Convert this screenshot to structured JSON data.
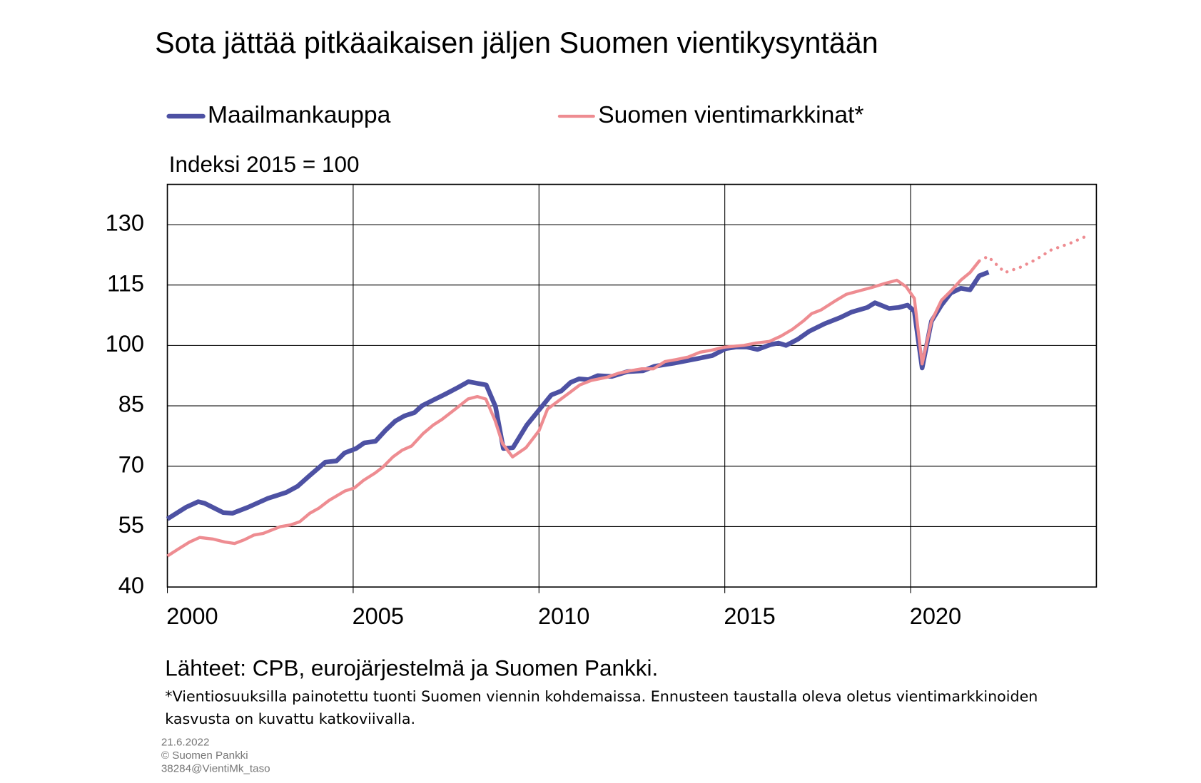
{
  "chart_data": {
    "type": "line",
    "title": "Sota jättää pitkäaikaisen jäljen Suomen vientikysyntään",
    "y_label": "Indeksi 2015 = 100",
    "xlim": [
      2000,
      2025
    ],
    "xticks": [
      2000,
      2005,
      2010,
      2015,
      2020
    ],
    "ylim": [
      40,
      140
    ],
    "yticks": [
      40,
      55,
      70,
      85,
      100,
      115,
      130
    ],
    "grid": true,
    "series": [
      {
        "name": "Maailmankauppa",
        "color": "#4d51a3",
        "linewidth": 6,
        "x": [
          2000.0,
          2000.5,
          2000.83,
          2001.0,
          2001.5,
          2001.75,
          2002.17,
          2002.7,
          2003.2,
          2003.5,
          2003.83,
          2004.25,
          2004.55,
          2004.77,
          2005.08,
          2005.3,
          2005.6,
          2005.88,
          2006.13,
          2006.38,
          2006.65,
          2006.85,
          2007.17,
          2007.48,
          2007.83,
          2008.1,
          2008.58,
          2008.83,
          2009.04,
          2009.3,
          2009.67,
          2010.02,
          2010.33,
          2010.6,
          2010.85,
          2011.08,
          2011.33,
          2011.58,
          2011.96,
          2012.38,
          2012.8,
          2013.1,
          2013.63,
          2014.25,
          2014.67,
          2015.02,
          2015.3,
          2015.6,
          2015.88,
          2016.23,
          2016.44,
          2016.65,
          2016.96,
          2017.27,
          2017.69,
          2018.1,
          2018.42,
          2018.83,
          2019.04,
          2019.42,
          2019.67,
          2019.92,
          2020.1,
          2020.31,
          2020.56,
          2020.83,
          2021.08,
          2021.35,
          2021.6,
          2021.85,
          2022.1
        ],
        "values": [
          56.9,
          59.8,
          61.2,
          60.8,
          58.5,
          58.3,
          59.8,
          62,
          63.5,
          65,
          67.7,
          71,
          71.3,
          73.3,
          74.4,
          75.8,
          76.2,
          79,
          81.2,
          82.5,
          83.3,
          85,
          86.5,
          87.9,
          89.6,
          91,
          90.2,
          84.8,
          74.4,
          74.6,
          80.2,
          84.2,
          87.7,
          88.7,
          90.8,
          91.7,
          91.5,
          92.5,
          92.3,
          93.5,
          93.7,
          94.8,
          95.6,
          96.7,
          97.5,
          99.2,
          99.6,
          99.6,
          99,
          100.2,
          100.6,
          100,
          101.5,
          103.5,
          105.4,
          106.9,
          108.3,
          109.4,
          110.6,
          109.2,
          109.4,
          110,
          108.5,
          94.4,
          106,
          110,
          113,
          114.2,
          113.8,
          117.3,
          118.2
        ]
      },
      {
        "name": "Suomen vientimarkkinat*",
        "color": "#ee8c91",
        "linewidth": 4,
        "x": [
          2000.0,
          2000.29,
          2000.6,
          2000.87,
          2001.23,
          2001.54,
          2001.81,
          2002.06,
          2002.33,
          2002.58,
          2003.04,
          2003.31,
          2003.56,
          2003.83,
          2004.08,
          2004.35,
          2004.77,
          2005.03,
          2005.28,
          2005.59,
          2005.8,
          2006.07,
          2006.32,
          2006.57,
          2006.88,
          2007.15,
          2007.4,
          2007.78,
          2008.09,
          2008.34,
          2008.57,
          2008.82,
          2009.02,
          2009.29,
          2009.65,
          2010.0,
          2010.23,
          2010.52,
          2010.83,
          2011.1,
          2011.41,
          2011.83,
          2012.14,
          2012.45,
          2012.77,
          2013.08,
          2013.39,
          2013.7,
          2014.01,
          2014.33,
          2014.64,
          2015.0,
          2015.26,
          2015.51,
          2015.84,
          2016.2,
          2016.51,
          2016.82,
          2017.13,
          2017.34,
          2017.59,
          2017.96,
          2018.27,
          2018.59,
          2018.96,
          2019.31,
          2019.63,
          2019.88,
          2020.1,
          2020.31,
          2020.56,
          2020.83,
          2021.08,
          2021.35,
          2021.6,
          2021.85
        ],
        "values": [
          47.7,
          49.4,
          51.2,
          52.3,
          51.9,
          51.2,
          50.8,
          51.7,
          52.9,
          53.3,
          55,
          55.4,
          56.2,
          58.3,
          59.6,
          61.5,
          63.8,
          64.6,
          66.5,
          68.3,
          69.8,
          72.3,
          74,
          75,
          78.1,
          80.2,
          81.7,
          84.4,
          86.7,
          87.3,
          86.7,
          81.3,
          75.6,
          72.3,
          74.6,
          78.8,
          84.2,
          86.2,
          88.3,
          90.2,
          91.3,
          92.1,
          93.1,
          93.7,
          94.2,
          94.2,
          96,
          96.5,
          97.1,
          98.3,
          98.8,
          99.6,
          99.8,
          100,
          100.6,
          101,
          102.3,
          104,
          106.2,
          107.9,
          108.8,
          111,
          112.7,
          113.5,
          114.4,
          115.4,
          116.2,
          114.6,
          111.7,
          95.4,
          106,
          111.2,
          113.5,
          116.2,
          118.1,
          121
        ]
      },
      {
        "color": "#ee8c91",
        "linewidth": 4,
        "dashed": true,
        "x": [
          2021.85,
          2022.08,
          2022.54,
          2022.95,
          2023.37,
          2023.78,
          2024.3,
          2024.82
        ],
        "values": [
          121,
          122.1,
          118.1,
          119.4,
          121.3,
          123.7,
          125.4,
          127.5
        ]
      }
    ]
  },
  "source": "Lähteet: CPB, eurojärjestelmä ja Suomen Pankki.",
  "footnote": [
    "*Vientiosuuksilla painotettu tuonti Suomen viennin kohdemaissa. Ennusteen taustalla oleva oletus vientimarkkinoiden",
    "kasvusta on kuvattu katkoviivalla."
  ],
  "footer": [
    "21.6.2022",
    "© Suomen Pankki",
    "38284@VientiMk_taso"
  ]
}
